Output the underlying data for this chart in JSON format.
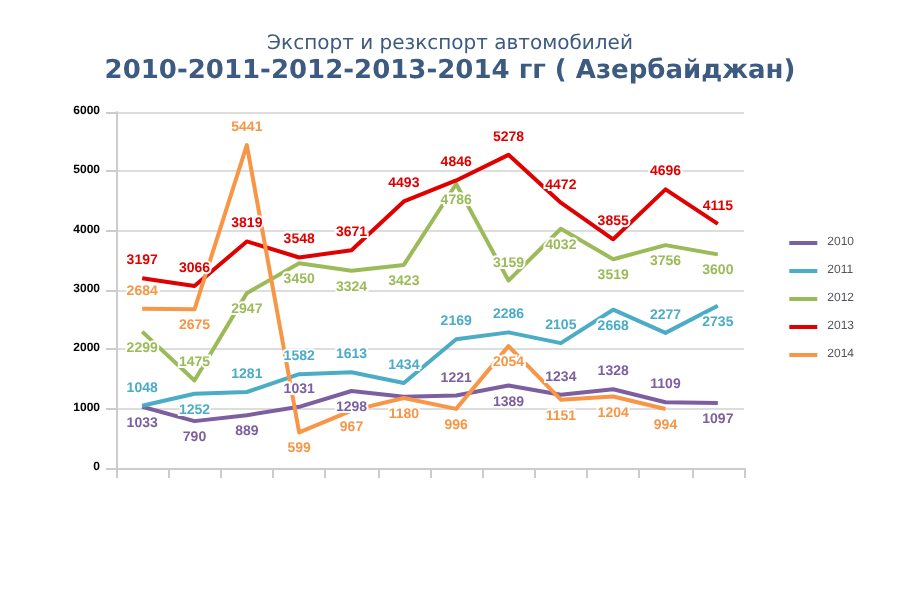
{
  "chart_data": {
    "type": "line",
    "title": "Экспорт и резкспорт автомобилей",
    "subtitle": "2010-2011-2012-2013-2014 гг ( Азербайджан)",
    "categories": [
      null,
      null,
      null,
      null,
      null,
      null,
      null,
      null,
      null,
      null,
      null,
      null
    ],
    "ylim": [
      0,
      6000
    ],
    "yticks": [
      0,
      1000,
      2000,
      3000,
      4000,
      5000,
      6000
    ],
    "grid": "y",
    "legend": "right",
    "marker": "none",
    "series": [
      {
        "name": "2010",
        "color": "#7d5fa0",
        "values": [
          1033,
          790,
          889,
          1031,
          1298,
          1200,
          1221,
          1389,
          1234,
          1328,
          1109,
          1097
        ],
        "value_labels": [
          "1033",
          "790",
          "889",
          "1031",
          "1298",
          null,
          "1221",
          "1389",
          "1234",
          "1328",
          "1109",
          "1097"
        ]
      },
      {
        "name": "2011",
        "color": "#4bacc6",
        "values": [
          1048,
          1252,
          1281,
          1582,
          1613,
          1434,
          2169,
          2286,
          2105,
          2668,
          2277,
          2735
        ],
        "value_labels": [
          "1048",
          "1252",
          "1281",
          "1582",
          "1613",
          "1434",
          "2169",
          "2286",
          "2105",
          "2668",
          "2277",
          "2735"
        ]
      },
      {
        "name": "2012",
        "color": "#9bbb59",
        "values": [
          2299,
          1475,
          2947,
          3450,
          3324,
          3423,
          4786,
          3159,
          4032,
          3519,
          3756,
          3600
        ],
        "value_labels": [
          "2299",
          "1475",
          "2947",
          "3450",
          "3324",
          "3423",
          "4786",
          "3159",
          "4032",
          "3519",
          "3756",
          "3600"
        ]
      },
      {
        "name": "2013",
        "color": "#e00000",
        "values": [
          3197,
          3066,
          3819,
          3548,
          3671,
          4493,
          4846,
          5278,
          4472,
          3855,
          4696,
          4115
        ],
        "value_labels": [
          "3197",
          "3066",
          "3819",
          "3548",
          "3671",
          "4493",
          "4846",
          "5278",
          "4472",
          "3855",
          "4696",
          "4115"
        ]
      },
      {
        "name": "2014",
        "color": "#f79646",
        "values": [
          2684,
          2675,
          5441,
          599,
          967,
          1180,
          996,
          2054,
          1151,
          1204,
          994,
          null
        ],
        "value_labels": [
          "2684",
          "2675",
          "5441",
          "599",
          "967",
          "1180",
          "996",
          "2054",
          "1151",
          "1204",
          "994",
          null
        ]
      }
    ]
  }
}
